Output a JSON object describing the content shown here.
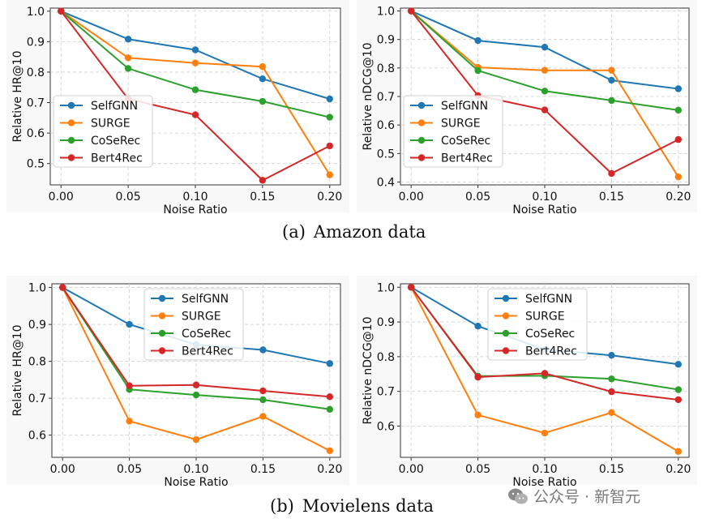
{
  "colors": {
    "SelfGNN": "#1f77b4",
    "SURGE": "#ff7f0e",
    "CoSeRec": "#2ca02c",
    "Bert4Rec": "#d62728"
  },
  "captions": {
    "a_tag": "(a)",
    "a_text": "Amazon data",
    "b_tag": "(b)",
    "b_text": "Movielens data"
  },
  "watermark": {
    "text": "公众号 · 新智元",
    "icon": "wechat-icon"
  },
  "chart_data": [
    {
      "type": "line",
      "xlabel": "Noise Ratio",
      "ylabel": "Relative HR@10",
      "x": [
        0.0,
        0.05,
        0.1,
        0.15,
        0.2
      ],
      "xticks": [
        "0.00",
        "0.05",
        "0.10",
        "0.15",
        "0.20"
      ],
      "ylim": [
        0.43,
        1.01
      ],
      "yticks": [
        0.5,
        0.6,
        0.7,
        0.8,
        0.9,
        1.0
      ],
      "ytick_labels": [
        "0.5",
        "0.6",
        "0.7",
        "0.8",
        "0.9",
        "1.0"
      ],
      "legend": "bottom-left",
      "grid": true,
      "series": [
        {
          "name": "SelfGNN",
          "values": [
            1.0,
            0.908,
            0.873,
            0.778,
            0.712
          ]
        },
        {
          "name": "SURGE",
          "values": [
            1.0,
            0.847,
            0.83,
            0.818,
            0.463
          ]
        },
        {
          "name": "CoSeRec",
          "values": [
            1.0,
            0.812,
            0.742,
            0.704,
            0.652
          ]
        },
        {
          "name": "Bert4Rec",
          "values": [
            1.0,
            0.712,
            0.66,
            0.445,
            0.558
          ]
        }
      ]
    },
    {
      "type": "line",
      "xlabel": "Noise Ratio",
      "ylabel": "Relative nDCG@10",
      "x": [
        0.0,
        0.05,
        0.1,
        0.15,
        0.2
      ],
      "xticks": [
        "0.00",
        "0.05",
        "0.10",
        "0.15",
        "0.20"
      ],
      "ylim": [
        0.39,
        1.01
      ],
      "yticks": [
        0.4,
        0.5,
        0.6,
        0.7,
        0.8,
        0.9,
        1.0
      ],
      "ytick_labels": [
        "0.4",
        "0.5",
        "0.6",
        "0.7",
        "0.8",
        "0.9",
        "1.0"
      ],
      "legend": "bottom-left",
      "grid": true,
      "series": [
        {
          "name": "SelfGNN",
          "values": [
            1.0,
            0.896,
            0.873,
            0.757,
            0.727
          ]
        },
        {
          "name": "SURGE",
          "values": [
            1.0,
            0.802,
            0.792,
            0.792,
            0.418
          ]
        },
        {
          "name": "CoSeRec",
          "values": [
            1.0,
            0.791,
            0.719,
            0.686,
            0.652
          ]
        },
        {
          "name": "Bert4Rec",
          "values": [
            1.0,
            0.703,
            0.653,
            0.43,
            0.549
          ]
        }
      ]
    },
    {
      "type": "line",
      "xlabel": "Noise Ratio",
      "ylabel": "Relative HR@10",
      "x": [
        0.0,
        0.05,
        0.1,
        0.15,
        0.2
      ],
      "xticks": [
        "0.00",
        "0.05",
        "0.10",
        "0.15",
        "0.20"
      ],
      "ylim": [
        0.54,
        1.01
      ],
      "yticks": [
        0.6,
        0.7,
        0.8,
        0.9,
        1.0
      ],
      "ytick_labels": [
        "0.6",
        "0.7",
        "0.8",
        "0.9",
        "1.0"
      ],
      "legend": "top-center",
      "grid": true,
      "series": [
        {
          "name": "SelfGNN",
          "values": [
            1.0,
            0.9,
            0.845,
            0.831,
            0.794
          ]
        },
        {
          "name": "SURGE",
          "values": [
            1.0,
            0.638,
            0.588,
            0.651,
            0.558
          ]
        },
        {
          "name": "CoSeRec",
          "values": [
            1.0,
            0.724,
            0.709,
            0.696,
            0.67
          ]
        },
        {
          "name": "Bert4Rec",
          "values": [
            1.0,
            0.734,
            0.736,
            0.72,
            0.704
          ]
        }
      ]
    },
    {
      "type": "line",
      "xlabel": "Noise Ratio",
      "ylabel": "Relative nDCG@10",
      "x": [
        0.0,
        0.05,
        0.1,
        0.15,
        0.2
      ],
      "xticks": [
        "0.00",
        "0.05",
        "0.10",
        "0.15",
        "0.20"
      ],
      "ylim": [
        0.51,
        1.01
      ],
      "yticks": [
        0.6,
        0.7,
        0.8,
        0.9,
        1.0
      ],
      "ytick_labels": [
        "0.6",
        "0.7",
        "0.8",
        "0.9",
        "1.0"
      ],
      "legend": "top-center",
      "grid": true,
      "series": [
        {
          "name": "SelfGNN",
          "values": [
            1.0,
            0.888,
            0.821,
            0.804,
            0.778
          ]
        },
        {
          "name": "SURGE",
          "values": [
            1.0,
            0.632,
            0.58,
            0.639,
            0.527
          ]
        },
        {
          "name": "CoSeRec",
          "values": [
            1.0,
            0.744,
            0.745,
            0.736,
            0.705
          ]
        },
        {
          "name": "Bert4Rec",
          "values": [
            1.0,
            0.741,
            0.752,
            0.699,
            0.676
          ]
        }
      ]
    }
  ]
}
